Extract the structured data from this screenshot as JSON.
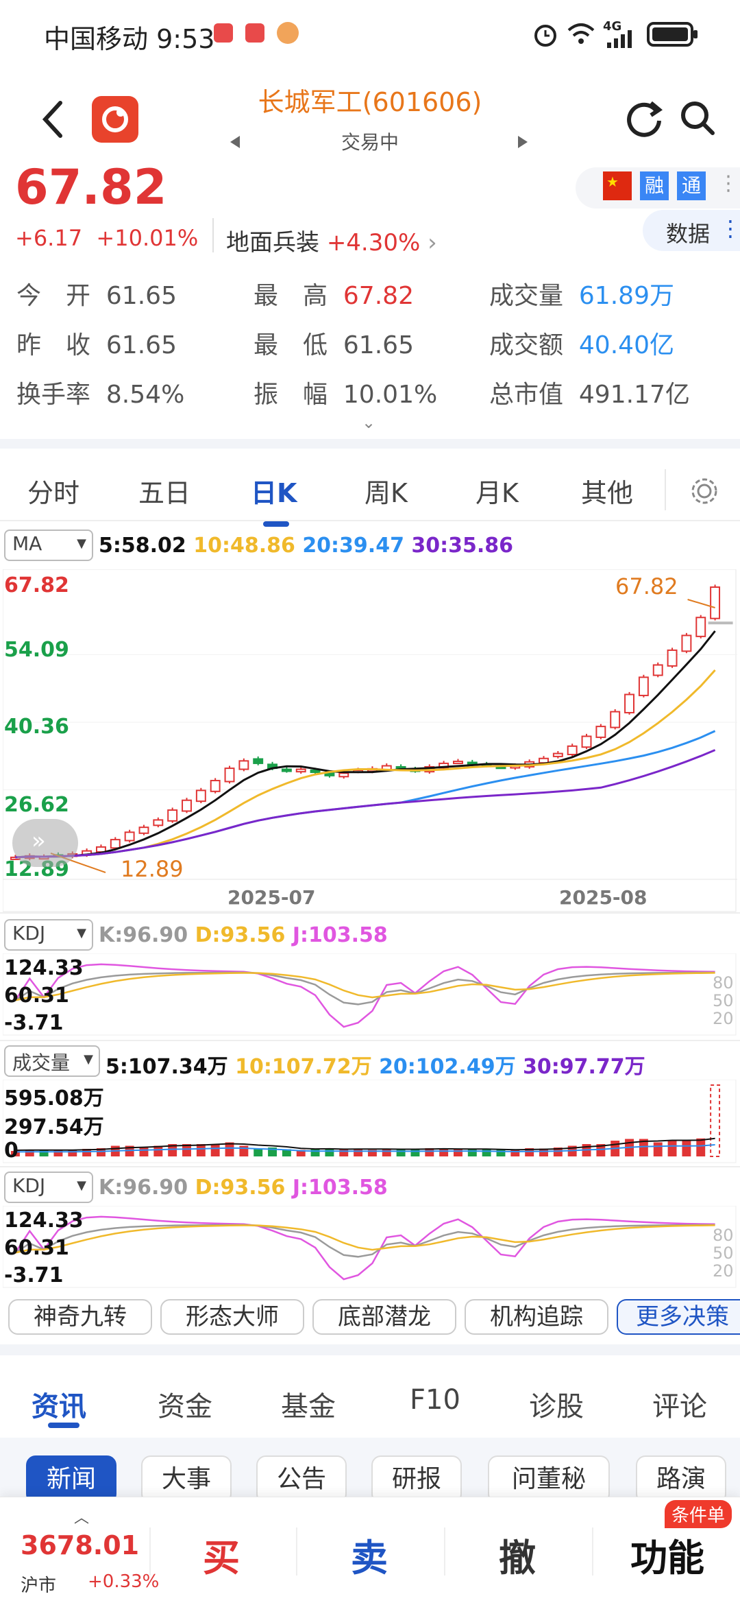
{
  "status_bar": {
    "carrier": "中国移动",
    "time": "9:53",
    "network": "4G"
  },
  "header": {
    "title": "长城军工(601606)",
    "subtitle": "交易中"
  },
  "quote": {
    "price": "67.82",
    "change": "+6.17",
    "change_pct": "+10.01%",
    "sector_name": "地面兵装",
    "sector_pct": "+4.30%",
    "badges": [
      "融",
      "通"
    ],
    "data_label": "数据"
  },
  "stats": {
    "open_label": "今　开",
    "open": "61.65",
    "high_label": "最　高",
    "high": "67.82",
    "volume_label": "成交量",
    "volume": "61.89万",
    "prev_label": "昨　收",
    "prev": "61.65",
    "low_label": "最　低",
    "low": "61.65",
    "amount_label": "成交额",
    "amount": "40.40亿",
    "turnover_label": "换手率",
    "turnover": "8.54%",
    "amplitude_label": "振　幅",
    "amplitude": "10.01%",
    "mktcap_label": "总市值",
    "mktcap": "491.17亿"
  },
  "chart_tabs": [
    "分时",
    "五日",
    "日K",
    "周K",
    "月K",
    "其他"
  ],
  "active_chart_tab": "日K",
  "ma_indicator": {
    "name": "MA",
    "ma5": "5:58.02",
    "ma10": "10:48.86",
    "ma20": "20:39.47",
    "ma30": "30:35.86"
  },
  "kdj1": {
    "name": "KDJ",
    "k": "K:96.90",
    "d": "D:93.56",
    "j": "J:103.58",
    "y_top": "124.33",
    "y_mid": "60.31",
    "y_bot": "-3.71",
    "levels": [
      "80",
      "50",
      "20"
    ]
  },
  "volume_indicator": {
    "name": "成交量",
    "v5": "5:107.34万",
    "v10": "10:107.72万",
    "v20": "20:102.49万",
    "v30": "30:97.77万",
    "y_top": "595.08万",
    "y_mid": "297.54万",
    "y_bot": "0"
  },
  "kdj2": {
    "name": "KDJ",
    "k": "K:96.90",
    "d": "D:93.56",
    "j": "J:103.58",
    "y_top": "124.33",
    "y_mid": "60.31",
    "y_bot": "-3.71",
    "levels": [
      "80",
      "50",
      "20"
    ]
  },
  "chart_data": {
    "type": "candlestick",
    "y_ticks": [
      "67.82",
      "54.09",
      "40.36",
      "26.62",
      "12.89"
    ],
    "ylim": [
      12.89,
      67.82
    ],
    "x_ticks": [
      "2025-07",
      "2025-08"
    ],
    "high_annotation": "67.82",
    "low_annotation": "12.89",
    "closes": [
      12.9,
      13.2,
      13.0,
      13.3,
      13.6,
      14.2,
      15.0,
      16.5,
      18.0,
      19.0,
      20.5,
      22.5,
      24.5,
      26.5,
      28.5,
      31.0,
      32.5,
      32.0,
      31.0,
      30.5,
      30.8,
      30.2,
      29.5,
      30.0,
      30.6,
      30.9,
      31.5,
      31.0,
      30.5,
      31.3,
      32.0,
      32.4,
      32.0,
      31.6,
      31.3,
      31.5,
      32.3,
      33.0,
      34.0,
      35.5,
      37.5,
      39.5,
      42.5,
      46.0,
      49.5,
      52.0,
      55.0,
      58.0,
      61.65,
      67.82
    ],
    "ma_series": [
      {
        "name": "5",
        "color": "#111111",
        "value": "58.02"
      },
      {
        "name": "10",
        "color": "#f0b92b",
        "value": "48.86"
      },
      {
        "name": "20",
        "color": "#2b8ff0",
        "value": "39.47"
      },
      {
        "name": "30",
        "color": "#7a26c9",
        "value": "35.86"
      }
    ]
  },
  "strategy_buttons": [
    "神奇九转",
    "形态大师",
    "底部潜龙",
    "机构追踪",
    "更多决策"
  ],
  "news_tabs": [
    "资讯",
    "资金",
    "基金",
    "F10",
    "诊股",
    "评论"
  ],
  "news_subtabs": [
    "新闻",
    "大事",
    "公告",
    "研报",
    "问董秘",
    "路演"
  ],
  "bottom": {
    "index_value": "3678.01",
    "index_name": "沪市",
    "index_change": "+0.33%",
    "buy": "买",
    "sell": "卖",
    "cancel": "撤",
    "function": "功能",
    "function_badge": "条件单"
  },
  "colors": {
    "up": "#e03535",
    "down": "#1aa04a",
    "accent": "#1f55c4",
    "title": "#e8761a"
  }
}
